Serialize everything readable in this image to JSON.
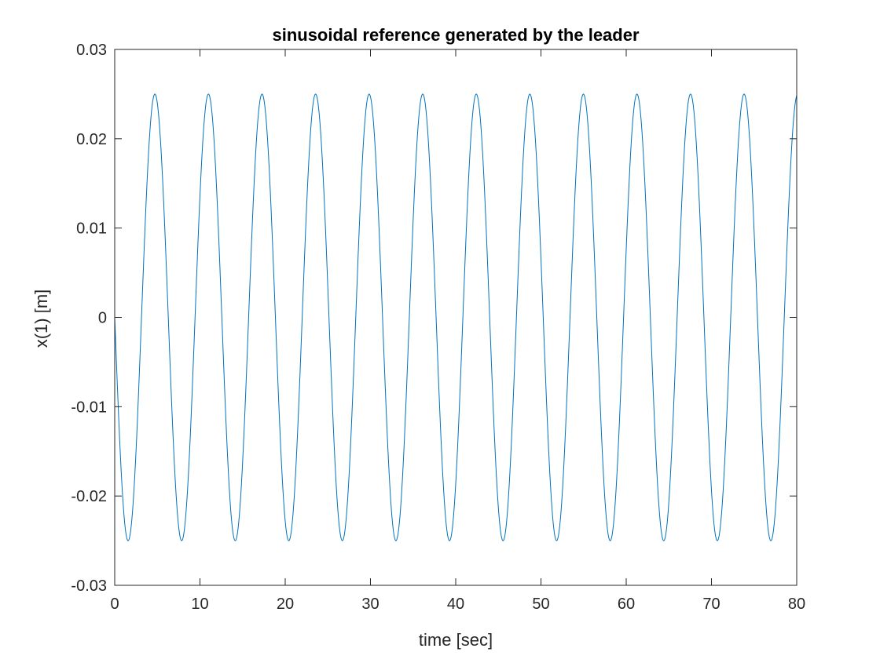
{
  "chart_data": {
    "type": "line",
    "title": "sinusoidal reference generated by the leader",
    "xlabel": "time [sec]",
    "ylabel": "x(1) [m]",
    "xlim": [
      0,
      80
    ],
    "ylim": [
      -0.03,
      0.03
    ],
    "x_ticks": [
      0,
      10,
      20,
      30,
      40,
      50,
      60,
      70,
      80
    ],
    "x_tick_labels": [
      "0",
      "10",
      "20",
      "30",
      "40",
      "50",
      "60",
      "70",
      "80"
    ],
    "y_ticks": [
      0.03,
      0.02,
      0.01,
      0,
      -0.01,
      -0.02,
      -0.03
    ],
    "y_tick_labels": [
      "0.03",
      "0.02",
      "0.01",
      "0",
      "-0.01",
      "-0.02",
      "-0.03"
    ],
    "grid": false,
    "series": [
      {
        "color": "#0072BD",
        "function": "y = -0.025 * sin(t)",
        "amplitude": 0.025,
        "angular_frequency": 1,
        "phase": "negative sine",
        "t_range": [
          0,
          80
        ]
      }
    ]
  }
}
